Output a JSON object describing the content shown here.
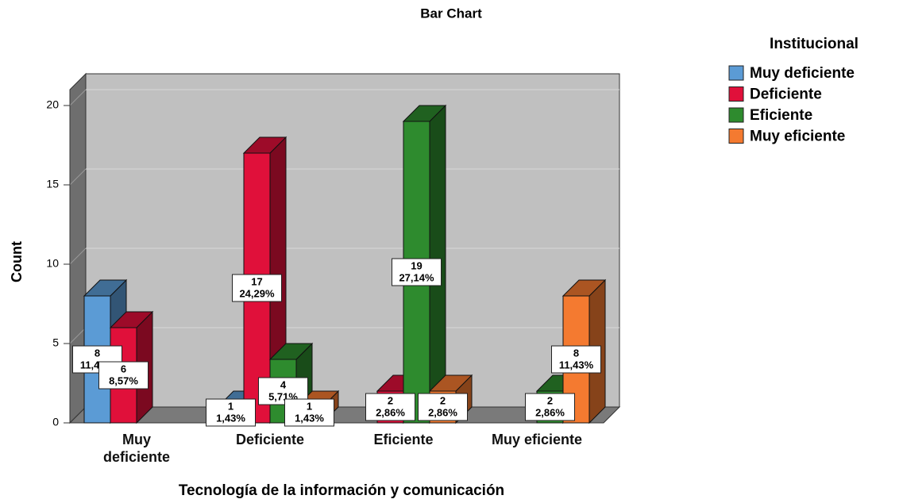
{
  "chart_data": {
    "type": "bar3d",
    "title": "Bar Chart",
    "x_label": "Tecnología de la información y comunicación",
    "y_label": "Count",
    "legend_title": "Institucional",
    "categories": [
      "Muy deficiente",
      "Deficiente",
      "Eficiente",
      "Muy eficiente"
    ],
    "series": [
      {
        "name": "Muy deficiente",
        "color": "#5b9bd5",
        "values": [
          8,
          1,
          null,
          null
        ],
        "percent_labels": [
          "11,43%",
          "1,43%",
          null,
          null
        ]
      },
      {
        "name": "Deficiente",
        "color": "#e0103a",
        "values": [
          6,
          17,
          2,
          null
        ],
        "percent_labels": [
          "8,57%",
          "24,29%",
          "2,86%",
          null
        ]
      },
      {
        "name": "Eficiente",
        "color": "#2e8b2e",
        "values": [
          null,
          4,
          19,
          2
        ],
        "percent_labels": [
          null,
          "5,71%",
          "27,14%",
          "2,86%"
        ]
      },
      {
        "name": "Muy eficiente",
        "color": "#f47a30",
        "values": [
          null,
          1,
          2,
          8
        ],
        "percent_labels": [
          null,
          "1,43%",
          "2,86%",
          "11,43%"
        ]
      }
    ],
    "ylim": [
      0,
      21
    ],
    "yticks": [
      0,
      5,
      10,
      15,
      20
    ],
    "grid": true
  }
}
